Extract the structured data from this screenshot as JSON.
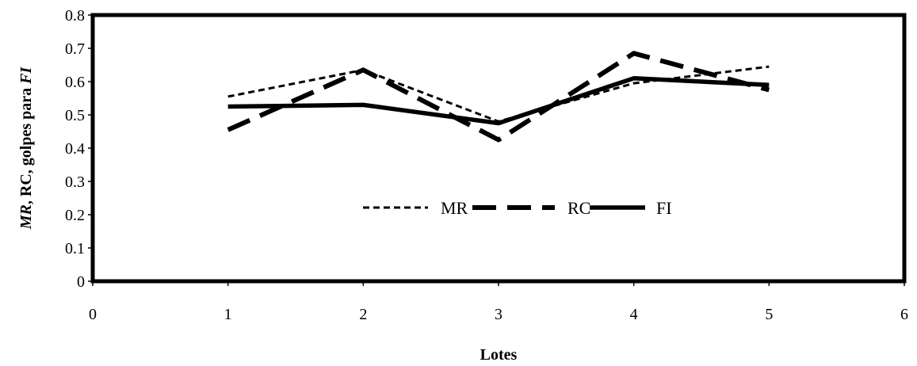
{
  "chart_data": {
    "type": "line",
    "xlabel": "Lotes",
    "ylabel_parts": [
      {
        "text": "MR",
        "italic": true
      },
      {
        "text": ", RC, golpes para ",
        "italic": false
      },
      {
        "text": "FI",
        "italic": true
      }
    ],
    "xlim": [
      0,
      6
    ],
    "ylim": [
      0,
      0.8
    ],
    "x_ticks": [
      "0",
      "1",
      "2",
      "3",
      "4",
      "5",
      "6"
    ],
    "y_ticks": [
      "0",
      "0.1",
      "0.2",
      "0.3",
      "0.4",
      "0.5",
      "0.6",
      "0.7",
      "0.8"
    ],
    "grid": false,
    "legend_position": "center",
    "series": [
      {
        "name": "MR",
        "style": "short-dash",
        "x": [
          1,
          2,
          3,
          4,
          5
        ],
        "y": [
          0.555,
          0.635,
          0.48,
          0.595,
          0.645
        ]
      },
      {
        "name": "RC",
        "style": "long-dash",
        "x": [
          1,
          2,
          3,
          4,
          5
        ],
        "y": [
          0.455,
          0.635,
          0.425,
          0.685,
          0.575
        ]
      },
      {
        "name": "FI",
        "style": "solid",
        "x": [
          1,
          2,
          3,
          4,
          5
        ],
        "y": [
          0.525,
          0.53,
          0.475,
          0.61,
          0.59
        ]
      }
    ]
  }
}
